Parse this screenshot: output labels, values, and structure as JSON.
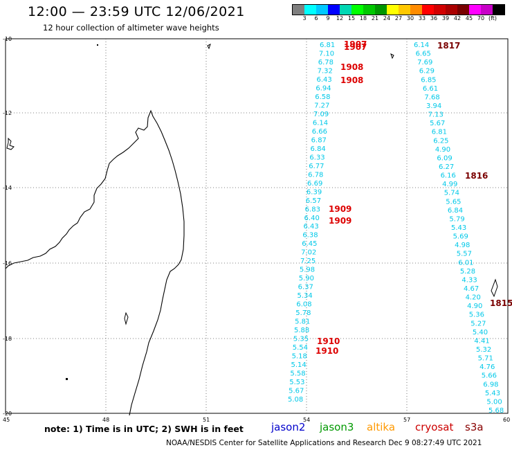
{
  "title": "12:00 — 23:59 UTC 12/06/2021",
  "subtitle": "12 hour collection of altimeter wave heights",
  "colorbar": {
    "colors": [
      "#7f7f7f",
      "#00ffff",
      "#00c8ff",
      "#0000ff",
      "#00d7b4",
      "#00ff00",
      "#00c800",
      "#009600",
      "#ffff00",
      "#ffc800",
      "#ff8c00",
      "#ff0000",
      "#d20000",
      "#aa0000",
      "#780000",
      "#ff00ff",
      "#c800c8",
      "#000000"
    ],
    "labels": [
      "3",
      "6",
      "9",
      "12",
      "15",
      "18",
      "21",
      "24",
      "27",
      "30",
      "33",
      "36",
      "39",
      "42",
      "45",
      "70",
      "(ft)"
    ]
  },
  "lat_labels": [
    "-10",
    "-12",
    "-14",
    "-16",
    "-18",
    "-20"
  ],
  "lon_labels": [
    "45",
    "48",
    "51",
    "54",
    "57",
    "60"
  ],
  "note": "note: 1) Time is in UTC; 2) SWH is in feet",
  "legend": [
    {
      "label": "jason2",
      "color": "#0000cc"
    },
    {
      "label": "jason3",
      "color": "#009900"
    },
    {
      "label": "altika",
      "color": "#ff9900"
    },
    {
      "label": "cryosat",
      "color": "#cc0000"
    },
    {
      "label": "s3a",
      "color": "#880000"
    }
  ],
  "credit": "NOAA/NESDIS Center for Satellite Applications and Research    Dec  9 08:27:49 UTC 2021",
  "track_color": "#00c8e8",
  "track_a": [
    "6.81",
    "7.10",
    "6.78",
    "7.32",
    "6.43",
    "6.94",
    "6.58",
    "7.27",
    "7.09",
    "6.14",
    "6.66",
    "6.87",
    "6.84",
    "6.33",
    "6.77",
    "6.78",
    "6.69",
    "6.39",
    "6.57",
    "6.83",
    "6.40",
    "6.43",
    "6.38",
    "6.45",
    "7.02",
    "7.25",
    "5.98",
    "5.90",
    "6.37",
    "5.34",
    "6.08",
    "5.78",
    "5.81",
    "5.88",
    "5.35",
    "5.54",
    "5.18",
    "5.14",
    "5.58",
    "5.53",
    "5.67",
    "5.08"
  ],
  "track_b": [
    "6.14",
    "6.65",
    "7.69",
    "6.29",
    "6.85",
    "6.61",
    "7.68",
    "3.94",
    "7.13",
    "5.67",
    "6.81",
    "6.25",
    "4.90",
    "6.09",
    "6.27",
    "6.16",
    "4.99",
    "5.74",
    "5.65",
    "6.84",
    "5.79",
    "5.43",
    "5.69",
    "4.98",
    "5.57",
    "6.01",
    "5.28",
    "4.33",
    "4.67",
    "4.20",
    "4.90",
    "5.36",
    "5.27",
    "5.40",
    "4.41",
    "5.32",
    "5.71",
    "4.76",
    "5.66",
    "6.98",
    "5.43",
    "5.00",
    "5.68"
  ],
  "times_a": [
    {
      "text": "1907",
      "color": "#dd0000"
    },
    {
      "text": "1907",
      "color": "#dd0000"
    },
    {
      "text": "1908",
      "color": "#dd0000"
    },
    {
      "text": "1908",
      "color": "#dd0000"
    },
    {
      "text": "1909",
      "color": "#dd0000"
    },
    {
      "text": "1909",
      "color": "#dd0000"
    },
    {
      "text": "1910",
      "color": "#dd0000"
    },
    {
      "text": "1910",
      "color": "#dd0000"
    }
  ],
  "times_b": [
    {
      "text": "1817",
      "color": "#7a0000"
    },
    {
      "text": "1816",
      "color": "#7a0000"
    },
    {
      "text": "1815",
      "color": "#7a0000"
    }
  ]
}
